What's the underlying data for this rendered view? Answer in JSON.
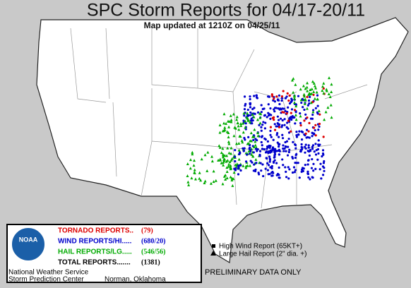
{
  "header": {
    "title": "SPC Storm Reports for 04/17-20/11",
    "subtitle": "Map updated at 1210Z on 04/25/11"
  },
  "legend": {
    "rows": [
      {
        "label": "TORNADO REPORTS..",
        "count": "(79)"
      },
      {
        "label": "WIND REPORTS/HI.....",
        "count": "(680/20)"
      },
      {
        "label": "HAIL REPORTS/LG.....",
        "count": "(546/56)"
      },
      {
        "label": "TOTAL REPORTS.......",
        "count": "(1381)"
      }
    ],
    "logo": "NOAA",
    "high_wind": "High Wind Report (65KT+)",
    "large_hail": "Large Hail Report (2\" dia. +)"
  },
  "footer": {
    "line1": "National Weather Service",
    "line2": "Storm Prediction Center",
    "location": "Norman, Oklahoma",
    "note": "PRELIMINARY DATA ONLY"
  }
}
